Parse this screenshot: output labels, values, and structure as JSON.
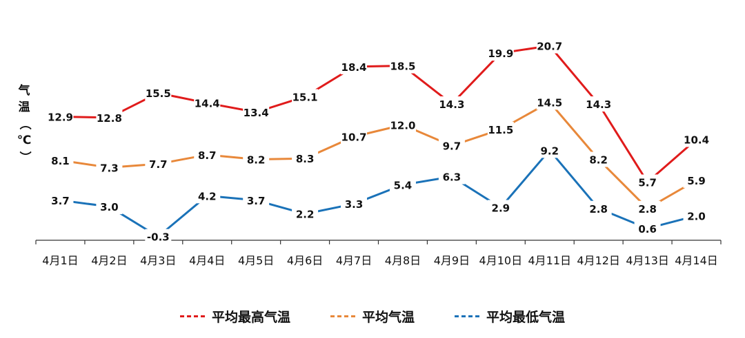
{
  "chart_data": {
    "type": "line",
    "ylabel_chars": [
      "气",
      "温",
      "（",
      "℃",
      "）"
    ],
    "categories": [
      "4月1日",
      "4月2日",
      "4月3日",
      "4月4日",
      "4月5日",
      "4月6日",
      "4月7日",
      "4月8日",
      "4月9日",
      "4月10日",
      "4月11日",
      "4月12日",
      "4月13日",
      "4月14日"
    ],
    "series": [
      {
        "name": "平均最高气温",
        "color": "#e01b1b",
        "values": [
          12.9,
          12.8,
          15.5,
          14.4,
          13.4,
          15.1,
          18.4,
          18.5,
          14.3,
          19.9,
          20.7,
          14.3,
          5.7,
          10.4
        ],
        "labels": [
          "12.9",
          "12.8",
          "15.5",
          "14.4",
          "13.4",
          "15.1",
          "18.4",
          "18.5",
          "14.3",
          "19.9",
          "20.7",
          "14.3",
          "5.7",
          "10.4"
        ]
      },
      {
        "name": "平均气温",
        "color": "#e8883a",
        "values": [
          8.1,
          7.3,
          7.7,
          8.7,
          8.2,
          8.3,
          10.7,
          12.0,
          9.7,
          11.5,
          14.5,
          8.2,
          2.8,
          5.9
        ],
        "labels": [
          "8.1",
          "7.3",
          "7.7",
          "8.7",
          "8.2",
          "8.3",
          "10.7",
          "12.0",
          "9.7",
          "11.5",
          "14.5",
          "8.2",
          "2.8",
          "5.9"
        ]
      },
      {
        "name": "平均最低气温",
        "color": "#1a72b8",
        "values": [
          3.7,
          3.0,
          -0.3,
          4.2,
          3.7,
          2.2,
          3.3,
          5.4,
          6.3,
          2.9,
          9.2,
          2.8,
          0.6,
          2.0
        ],
        "labels": [
          "3.7",
          "3.0",
          "-0.3",
          "4.2",
          "3.7",
          "2.2",
          "3.3",
          "5.4",
          "6.3",
          "2.9",
          "9.2",
          "2.8",
          "0.6",
          "2.0"
        ]
      }
    ],
    "legend_position": "bottom",
    "grid": false
  }
}
